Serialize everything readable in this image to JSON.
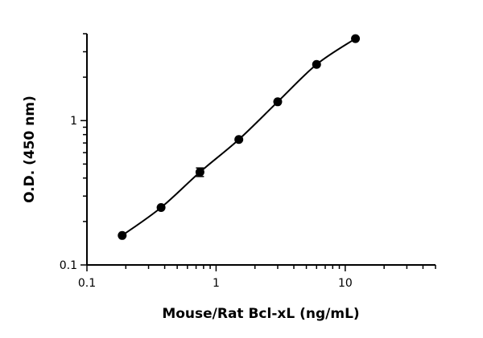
{
  "chart_data": {
    "type": "scatter",
    "x_scale": "log",
    "y_scale": "log",
    "xlabel": "Mouse/Rat Bcl-xL (ng/mL)",
    "ylabel": "O.D. (450 nm)",
    "xlim": [
      0.1,
      50
    ],
    "ylim": [
      0.1,
      4
    ],
    "x_ticks": [
      0.1,
      1,
      10
    ],
    "x_tick_labels": [
      "0.1",
      "1",
      "10"
    ],
    "y_ticks": [
      0.1,
      1
    ],
    "y_tick_labels": [
      "0.1",
      "1"
    ],
    "grid": false,
    "series": [
      {
        "x": [
          0.1875,
          0.375,
          0.75,
          1.5,
          3,
          6,
          12
        ],
        "y": [
          0.16,
          0.25,
          0.44,
          0.74,
          1.35,
          2.45,
          3.7
        ],
        "y_err": [
          0,
          0,
          0.03,
          0,
          0,
          0,
          0
        ],
        "fit": "4PL curve"
      }
    ],
    "marker_color": "#000000",
    "line_color": "#000000"
  }
}
